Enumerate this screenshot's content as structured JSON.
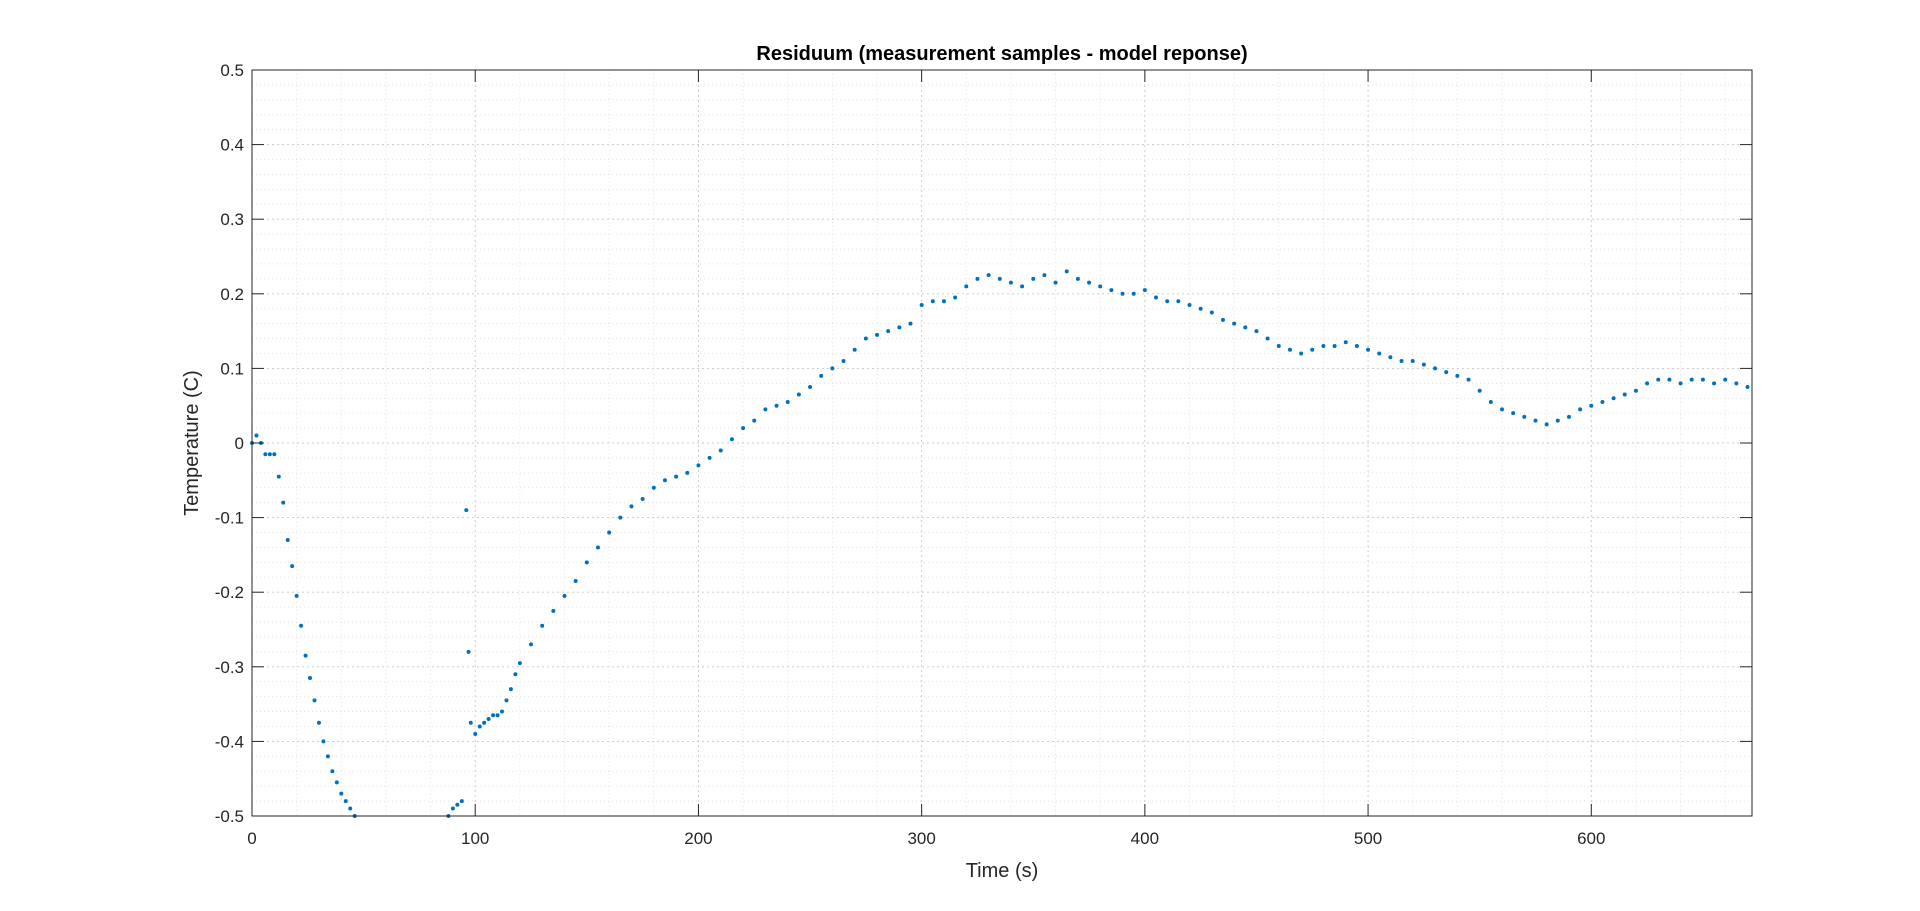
{
  "chart_data": {
    "type": "scatter",
    "title": "Residuum (measurement samples - model reponse)",
    "xlabel": "Time (s)",
    "ylabel": "Temperature (C)",
    "xlim": [
      0,
      672
    ],
    "ylim": [
      -0.5,
      0.5
    ],
    "xticks": [
      0,
      100,
      200,
      300,
      400,
      500,
      600
    ],
    "xtick_labels": [
      "0",
      "100",
      "200",
      "300",
      "400",
      "500",
      "600"
    ],
    "yticks": [
      -0.5,
      -0.4,
      -0.3,
      -0.2,
      -0.1,
      0,
      0.1,
      0.2,
      0.3,
      0.4,
      0.5
    ],
    "ytick_labels": [
      "-0.5",
      "-0.4",
      "-0.3",
      "-0.2",
      "-0.1",
      "0",
      "0.1",
      "0.2",
      "0.3",
      "0.4",
      "0.5"
    ],
    "grid": true,
    "minor_grid": true,
    "marker_color": "#0072BD",
    "series": [
      {
        "x": [
          0,
          2,
          4,
          6,
          8,
          10,
          12,
          14,
          16,
          18,
          20,
          22,
          24,
          26,
          28,
          30,
          32,
          34,
          36,
          38,
          40,
          42,
          44,
          46,
          88,
          90,
          92,
          94,
          96,
          97,
          98,
          100,
          102,
          104,
          106,
          108,
          110,
          112,
          114,
          116,
          118,
          120,
          125,
          130,
          135,
          140,
          145,
          150,
          155,
          160,
          165,
          170,
          175,
          180,
          185,
          190,
          195,
          200,
          205,
          210,
          215,
          220,
          225,
          230,
          235,
          240,
          245,
          250,
          255,
          260,
          265,
          270,
          275,
          280,
          285,
          290,
          295,
          300,
          305,
          310,
          315,
          320,
          325,
          330,
          335,
          340,
          345,
          350,
          355,
          360,
          365,
          370,
          375,
          380,
          385,
          390,
          395,
          400,
          405,
          410,
          415,
          420,
          425,
          430,
          435,
          440,
          445,
          450,
          455,
          460,
          465,
          470,
          475,
          480,
          485,
          490,
          495,
          500,
          505,
          510,
          515,
          520,
          525,
          530,
          535,
          540,
          545,
          550,
          555,
          560,
          565,
          570,
          575,
          580,
          585,
          590,
          595,
          600,
          605,
          610,
          615,
          620,
          625,
          630,
          635,
          640,
          645,
          650,
          655,
          660,
          665,
          670
        ],
        "y": [
          0.0,
          0.01,
          0.0,
          -0.015,
          -0.015,
          -0.015,
          -0.045,
          -0.08,
          -0.13,
          -0.165,
          -0.205,
          -0.245,
          -0.285,
          -0.315,
          -0.345,
          -0.375,
          -0.4,
          -0.42,
          -0.44,
          -0.455,
          -0.47,
          -0.48,
          -0.49,
          -0.5,
          -0.5,
          -0.49,
          -0.485,
          -0.48,
          -0.09,
          -0.28,
          -0.375,
          -0.39,
          -0.38,
          -0.375,
          -0.37,
          -0.365,
          -0.365,
          -0.36,
          -0.345,
          -0.33,
          -0.31,
          -0.295,
          -0.27,
          -0.245,
          -0.225,
          -0.205,
          -0.185,
          -0.16,
          -0.14,
          -0.12,
          -0.1,
          -0.085,
          -0.075,
          -0.06,
          -0.05,
          -0.045,
          -0.04,
          -0.03,
          -0.02,
          -0.01,
          0.005,
          0.02,
          0.03,
          0.045,
          0.05,
          0.055,
          0.065,
          0.075,
          0.09,
          0.1,
          0.11,
          0.125,
          0.14,
          0.145,
          0.15,
          0.155,
          0.16,
          0.185,
          0.19,
          0.19,
          0.195,
          0.21,
          0.22,
          0.225,
          0.22,
          0.215,
          0.21,
          0.22,
          0.225,
          0.215,
          0.23,
          0.22,
          0.215,
          0.21,
          0.205,
          0.2,
          0.2,
          0.205,
          0.195,
          0.19,
          0.19,
          0.185,
          0.18,
          0.175,
          0.165,
          0.16,
          0.155,
          0.15,
          0.14,
          0.13,
          0.125,
          0.12,
          0.125,
          0.13,
          0.13,
          0.135,
          0.13,
          0.125,
          0.12,
          0.115,
          0.11,
          0.11,
          0.105,
          0.1,
          0.095,
          0.09,
          0.085,
          0.07,
          0.055,
          0.045,
          0.04,
          0.035,
          0.03,
          0.025,
          0.03,
          0.035,
          0.045,
          0.05,
          0.055,
          0.06,
          0.065,
          0.07,
          0.08,
          0.085,
          0.085,
          0.08,
          0.085,
          0.085,
          0.08,
          0.085,
          0.08,
          0.075
        ]
      }
    ]
  }
}
